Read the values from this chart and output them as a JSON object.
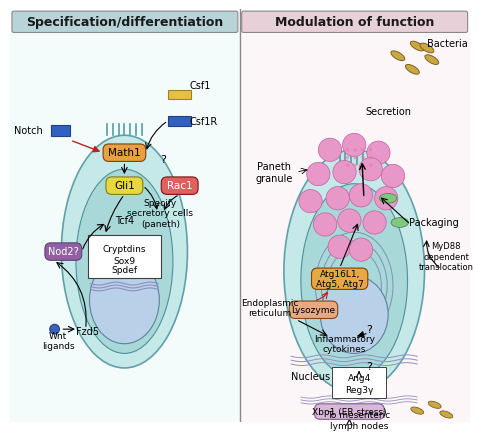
{
  "title_left": "Specification/differentiation",
  "title_right": "Modulation of function",
  "title_left_bg": "#b8d4d8",
  "title_right_bg": "#e8d0d8",
  "title_border": "#888888",
  "fig_bg": "#ffffff",
  "cell_body_color": "#c8e8e8",
  "cell_inner_color": "#a8d8d8",
  "nucleus_color": "#b0c8e0",
  "divider_color": "#888888",
  "left_panel_bg": "#f0f8f8",
  "right_panel_bg": "#f8f0f8",
  "math1_color": "#e8a040",
  "gli1_color": "#e8d840",
  "rac1_color": "#e06060",
  "nod2_color": "#9060a0",
  "atg_color": "#e8a840",
  "lyso_color": "#e8a880",
  "xbp1_color": "#d8b8d8",
  "label_notch": "Notch",
  "label_csf1": "Csf1",
  "label_csf1r": "Csf1R",
  "label_math1": "Math1",
  "label_gli1": "Gli1",
  "label_rac1": "Rac1",
  "label_nod2": "Nod2?",
  "label_tcf4": "Tcf4",
  "label_cryptdins": "Cryptdins\nSox9\nSpdef",
  "label_fzd5": "Fzd5",
  "label_wnt": "Wnt\nligands",
  "label_specify": "Specify\nsecretory cells\n(paneth)",
  "label_bacteria": "Bacteria",
  "label_secretion": "Secretion",
  "label_paneth_granule": "Paneth\ngranule",
  "label_packaging": "Packaging",
  "label_atg": "Atg16L1,\nAtg5, Atg7",
  "label_lysozyme": "Lysozyme",
  "label_er": "Endoplasmic\nreticulum",
  "label_inflam": "Inflammatory\ncytokines",
  "label_nucleus": "Nucleus",
  "label_ang4": "Ang4\nReg3γ",
  "label_xbp1": "Xbp1 (ER stress)",
  "label_myD88": "MyD88\ndependent\ntranslocation",
  "label_mesenteric": "To mesenteric\nlymph nodes"
}
